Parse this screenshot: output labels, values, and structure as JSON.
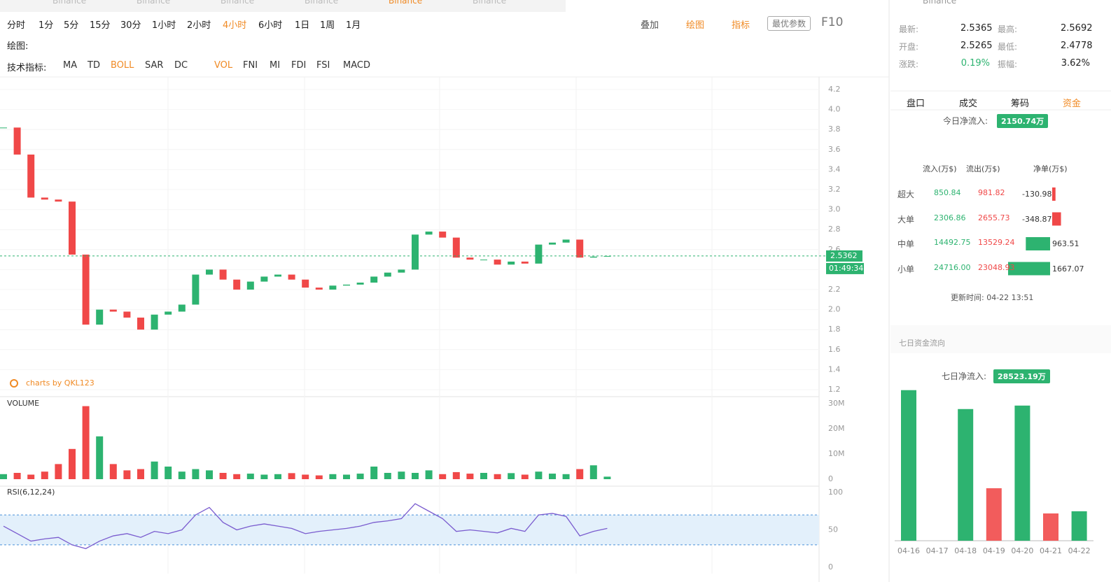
{
  "tabs": [
    "Binance",
    "Binance",
    "Binance",
    "Binance",
    "Binance",
    "Binance"
  ],
  "periods": [
    "分时",
    "1分",
    "5分",
    "15分",
    "30分",
    "1小时",
    "2小时",
    "4小时",
    "6小时",
    "1日",
    "1周",
    "1月"
  ],
  "active_period_index": 7,
  "tools": [
    "叠加",
    "绘图",
    "指标"
  ],
  "best_params": "最优参数",
  "f10": "F10",
  "draw_label": "绘图:",
  "indicator_label": "技术指标:",
  "indicators_main": [
    "MA",
    "TD",
    "BOLL",
    "SAR",
    "DC"
  ],
  "indicators_sub": [
    "VOL",
    "FNI",
    "MI",
    "FDI",
    "FSI",
    "MACD"
  ],
  "watermark": "charts by QKL123",
  "countdown": "01:49:34",
  "quote": {
    "name": "Binance",
    "stats": [
      {
        "label": "最新:",
        "value": "2.5365"
      },
      {
        "label": "最高:",
        "value": "2.5692"
      },
      {
        "label": "开盘:",
        "value": "2.5265"
      },
      {
        "label": "最低:",
        "value": "2.4778"
      },
      {
        "label": "涨跌:",
        "value": "0.19%"
      },
      {
        "label": "振幅:",
        "value": "3.62%"
      }
    ]
  },
  "panel_tabs": [
    "盘口",
    "成交",
    "筹码",
    "资金"
  ],
  "today_inflow": {
    "label": "今日净流入:",
    "value": "2150.74万"
  },
  "flow_table": {
    "headers": [
      "流入(万$)",
      "流出(万$)",
      "净单(万$)"
    ],
    "rows": [
      {
        "name": "超大",
        "in": "850.84",
        "out": "981.82",
        "net": -130.98
      },
      {
        "name": "大单",
        "in": "2306.86",
        "out": "2655.73",
        "net": -348.87
      },
      {
        "name": "中单",
        "in": "14492.75",
        "out": "13529.24",
        "net": 963.51
      },
      {
        "name": "小单",
        "in": "24716.00",
        "out": "23048.93",
        "net": 1667.07
      }
    ]
  },
  "update_time": "更新时间: 04-22 13:51",
  "seven_day_title": "七日资金流向",
  "seven_day_inflow": {
    "label": "七日净流入:",
    "value": "28523.19万"
  },
  "chart_data": [
    {
      "type": "candlestick",
      "values": [
        3.82,
        3.55,
        3.12,
        3.1,
        3.08,
        2.55,
        1.85,
        2.0,
        1.98,
        1.92,
        1.8,
        1.95,
        1.98,
        2.05,
        2.35,
        2.4,
        2.3,
        2.2,
        2.28,
        2.33,
        2.35,
        2.3,
        2.22,
        2.2,
        2.24,
        2.25,
        2.27,
        2.33,
        2.37,
        2.4,
        2.75,
        2.78,
        2.72,
        2.52,
        2.5,
        2.5,
        2.45,
        2.48,
        2.46,
        2.65,
        2.67,
        2.7,
        2.52,
        2.53,
        2.5362
      ],
      "ylim": [
        1.1,
        4.3
      ],
      "yticks": [
        {
          "value": 4.2,
          "label": "4.2"
        },
        {
          "value": 4,
          "label": "4.0"
        },
        3.8,
        3.6,
        3.4,
        3.2,
        {
          "value": 3,
          "label": "3.0"
        },
        2.8,
        2.6,
        2.4,
        2.2,
        {
          "value": 2,
          "label": "2.0"
        },
        1.8,
        1.6,
        1.4,
        1.2
      ],
      "up_color": "#2db370",
      "down_color": "#f04848"
    },
    {
      "type": "bar",
      "title": "VOLUME",
      "values": [
        2000000,
        2500000,
        1800000,
        3000000,
        6000000,
        12000000,
        29000000,
        17000000,
        6000000,
        3500000,
        4000000,
        7000000,
        5000000,
        3000000,
        4000000,
        3500000,
        2500000,
        2000000,
        2200000,
        1800000,
        2000000,
        2400000,
        1800000,
        1500000,
        2000000,
        1800000,
        2200000,
        5000000,
        2500000,
        3000000,
        2500000,
        3500000,
        2000000,
        2800000,
        2200000,
        2500000,
        2000000,
        2400000,
        1800000,
        3000000,
        2200000,
        2000000,
        4000000,
        5500000,
        1000000
      ],
      "ylim": [
        0,
        30000000
      ],
      "yticks": [
        {
          "value": 0,
          "label": "0"
        },
        {
          "value": 10000000,
          "label": "10M"
        },
        {
          "value": 20000000,
          "label": "20M"
        },
        {
          "value": 30000000,
          "label": "30M"
        }
      ]
    },
    {
      "type": "line",
      "title": "RSI(6,12,24)",
      "color": "#7a5ccf",
      "values": [
        55,
        45,
        35,
        38,
        40,
        30,
        25,
        35,
        42,
        45,
        40,
        48,
        45,
        50,
        70,
        80,
        60,
        50,
        55,
        58,
        55,
        52,
        45,
        48,
        50,
        52,
        55,
        60,
        62,
        65,
        85,
        75,
        65,
        48,
        50,
        48,
        46,
        52,
        48,
        70,
        72,
        68,
        42,
        48,
        52
      ],
      "ylim": [
        0,
        100
      ],
      "yticks": [
        0,
        50,
        100
      ],
      "band": [
        30,
        70
      ]
    },
    {
      "type": "bar",
      "categories": [
        "04-16",
        "04-17",
        "04-18",
        "04-19",
        "04-20",
        "04-21",
        "04-22"
      ],
      "values": [
        11700,
        0,
        10230,
        -4080,
        10500,
        -2120,
        2290
      ],
      "up_color": "#2db370",
      "down_color": "#f25c5c"
    }
  ]
}
